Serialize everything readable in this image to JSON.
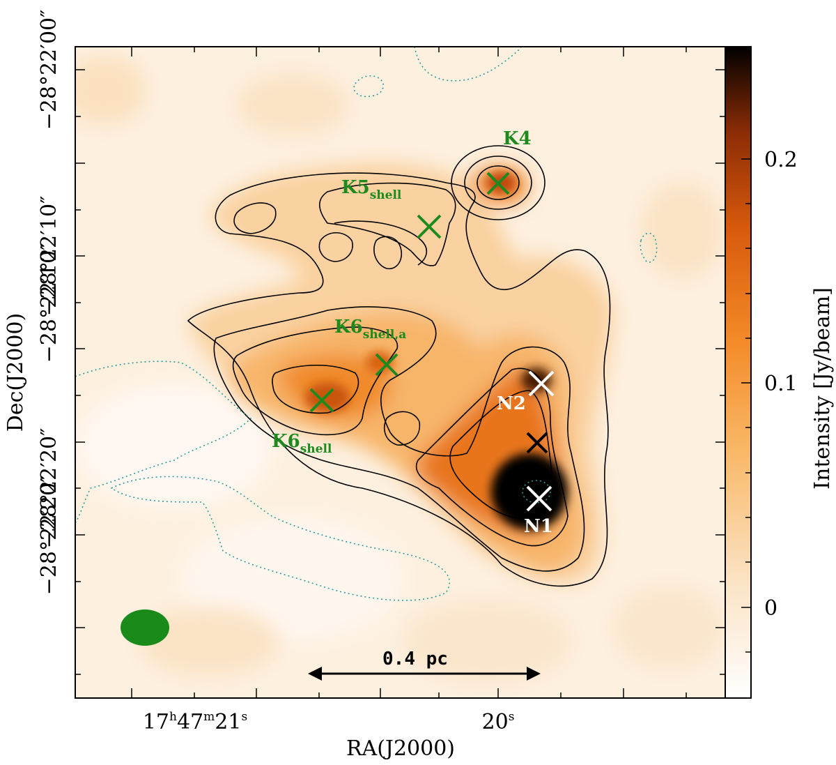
{
  "axes": {
    "x_label": "RA(J2000)",
    "y_label": "Dec(J2000)",
    "x_ticks": [
      {
        "h": "17",
        "hu": "h",
        "m": "47",
        "mu": "m",
        "s": "21",
        "su": "s"
      },
      {
        "s": "20",
        "su": "s"
      }
    ],
    "y_ticks": [
      "−28°22′00″",
      "−28°22′10″",
      "−28°22′10″",
      "−28°22′20″",
      "−28°22′20″"
    ]
  },
  "colorbar": {
    "label": "Intensity [Jy/beam]",
    "tick_labels": [
      "0.2",
      "0.1",
      "0"
    ],
    "tick_values": [
      0.2,
      0.1,
      0
    ],
    "range": [
      -0.04,
      0.25
    ],
    "colormap": [
      "#ffffff",
      "#fbe3c4",
      "#f9b867",
      "#f38a28",
      "#d85a0c",
      "#8a2c05",
      "#000000"
    ]
  },
  "sources": [
    {
      "name": "K4",
      "color": "#1e8a1e"
    },
    {
      "name": "K5",
      "sub": "shell",
      "color": "#1e8a1e"
    },
    {
      "name": "K6",
      "sub": "shell,a",
      "color": "#1e8a1e"
    },
    {
      "name": "K6",
      "sub": "shell",
      "color": "#1e8a1e"
    },
    {
      "name": "N2",
      "color": "#ffffff"
    },
    {
      "name": "N1",
      "color": "#ffffff"
    },
    {
      "name": "",
      "color": "#000000"
    }
  ],
  "scale_bar": {
    "label": "0.4 pc"
  },
  "beam": {
    "color": "#1a8a1a"
  },
  "colors": {
    "contour": "#000000",
    "negative_contour": "#2a9a9a",
    "green_marker": "#1e8a1e",
    "background": "#fdf0df"
  }
}
